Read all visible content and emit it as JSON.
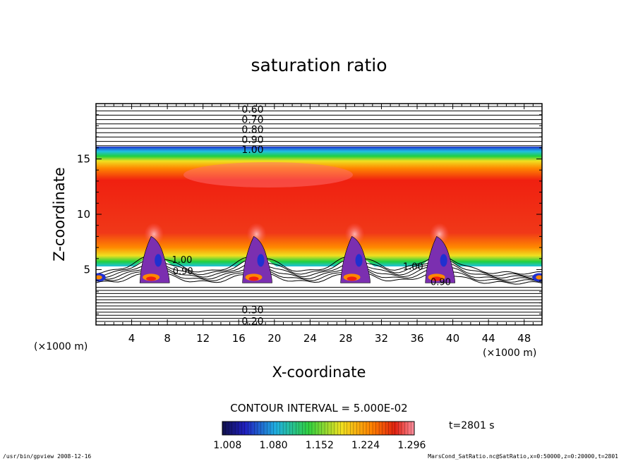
{
  "chart_data": {
    "type": "heatmap",
    "title": "saturation ratio",
    "xlabel": "X-coordinate",
    "ylabel": "Z-coordinate",
    "x_unit": "(×1000 m)",
    "z_unit": "(×1000 m)",
    "xlim": [
      0,
      50
    ],
    "ylim": [
      0,
      20
    ],
    "x_ticks": [
      4,
      8,
      12,
      16,
      20,
      24,
      28,
      32,
      36,
      40,
      44,
      48
    ],
    "y_ticks": [
      5,
      10,
      15
    ],
    "contour_interval_label": "CONTOUR INTERVAL = 5.000E-02",
    "time_label": "t=2801 s",
    "colorbar_ticks": [
      "1.008",
      "1.080",
      "1.152",
      "1.224",
      "1.296"
    ],
    "colorbar_range": [
      1.0,
      1.3
    ],
    "contour_labels_top": [
      "0.60",
      "0.70",
      "0.80",
      "0.90",
      "1.00"
    ],
    "contour_labels_bottom": [
      "0.30",
      "0.20"
    ],
    "contour_labels_mid": [
      "1.00",
      "0.90",
      "1.00",
      "0.90"
    ],
    "plume_x_centers": [
      6.5,
      18,
      29,
      38.5
    ],
    "footer_left": "/usr/bin/gpview 2008-12-16",
    "footer_right": "MarsCond_SatRatio.nc@SatRatio,x=0:50000,z=0:20000,t=2801",
    "colors": {
      "red": "#f02010",
      "orange": "#ff8800",
      "yellow": "#f0e020",
      "green": "#20d040",
      "cyan": "#20c0e0",
      "blue": "#2030d0",
      "purple": "#7b2fb0",
      "pink": "#ff9090"
    }
  }
}
